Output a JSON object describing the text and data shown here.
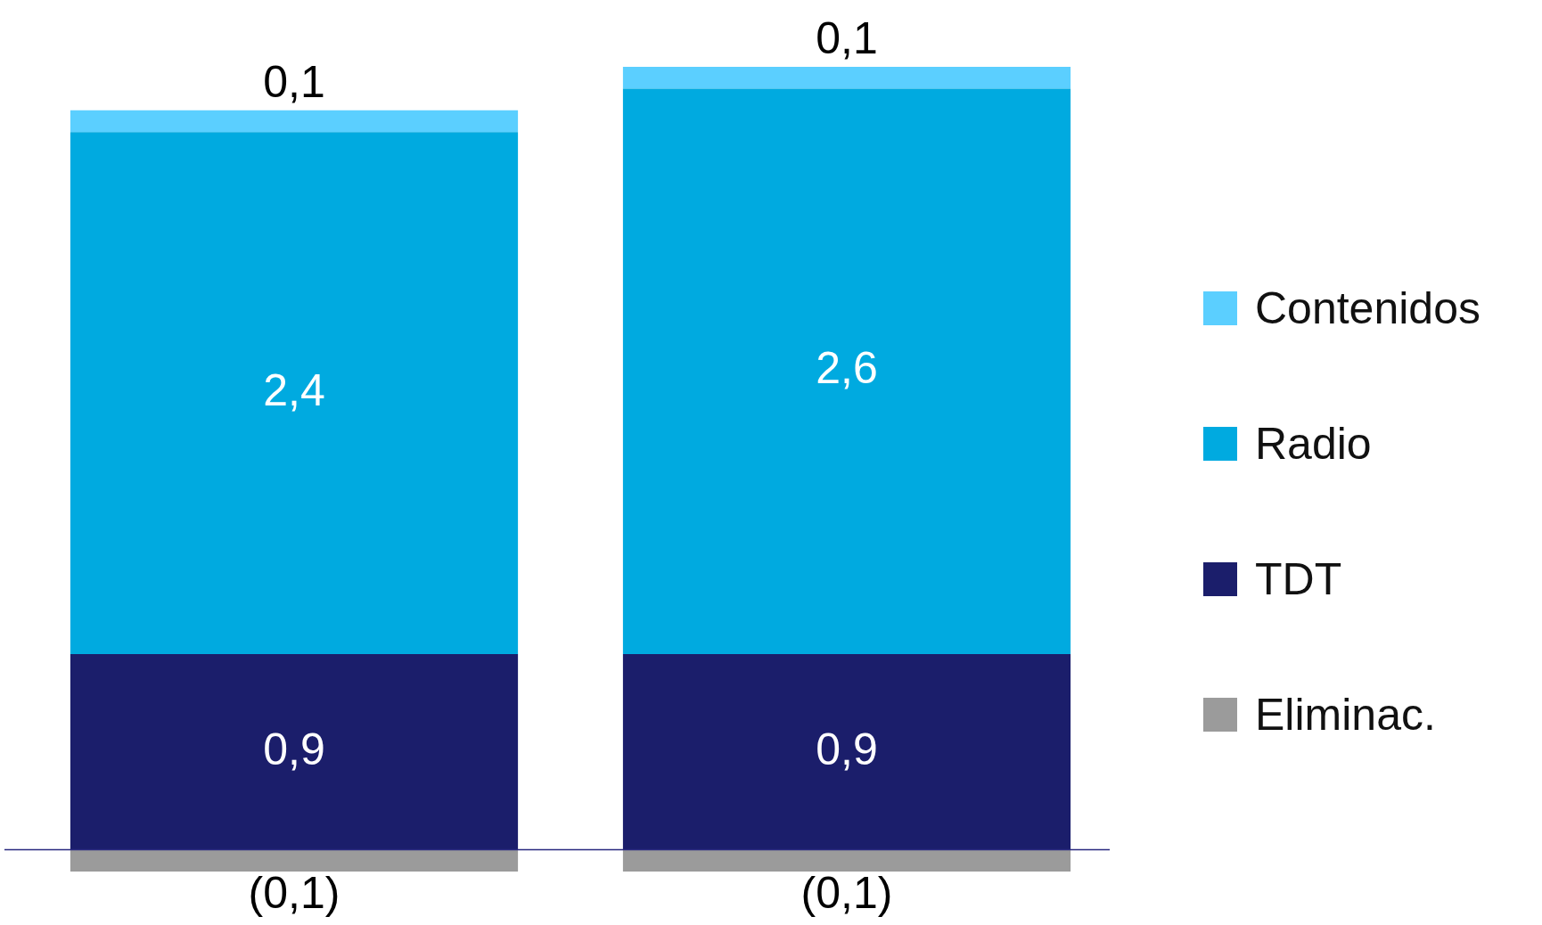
{
  "chart_data": {
    "type": "bar",
    "stacked": true,
    "categories": [
      null,
      null
    ],
    "legend": "right",
    "ref_lines": [
      {
        "axis": "y",
        "value": 0,
        "color": "#2a2a80"
      }
    ],
    "series": [
      {
        "name": "Eliminac.",
        "color": "#9b9b9b",
        "values": [
          -0.1,
          -0.1
        ],
        "value_labels": [
          "(0,1)",
          "(0,1)"
        ]
      },
      {
        "name": "TDT",
        "color": "#1b1e6b",
        "values": [
          0.9,
          0.9
        ],
        "value_labels": [
          "0,9",
          "0,9"
        ]
      },
      {
        "name": "Radio",
        "color": "#00aae0",
        "values": [
          2.4,
          2.6
        ],
        "value_labels": [
          "2,4",
          "2,6"
        ]
      },
      {
        "name": "Contenidos",
        "color": "#5bcfff",
        "values": [
          0.1,
          0.1
        ],
        "value_labels": [
          "0,1",
          "0,1"
        ]
      }
    ]
  }
}
